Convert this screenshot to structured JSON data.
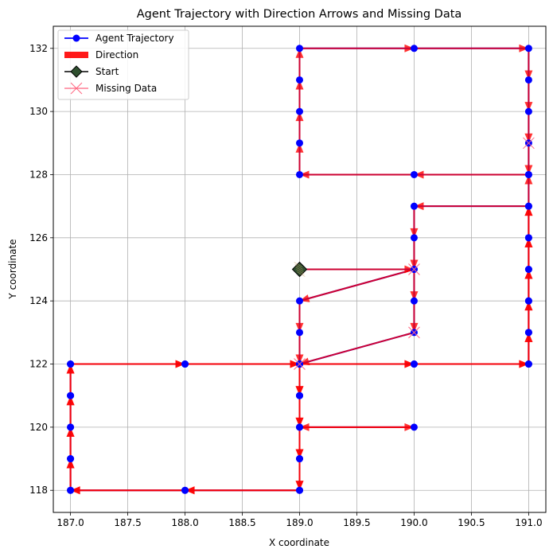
{
  "chart_data": {
    "type": "line",
    "title": "Agent Trajectory with Direction Arrows and Missing Data",
    "xlabel": "X coordinate",
    "ylabel": "Y coordinate",
    "xlim": [
      186.85,
      191.15
    ],
    "ylim": [
      117.3,
      132.7
    ],
    "xticks": [
      187.0,
      187.5,
      188.0,
      188.5,
      189.0,
      189.5,
      190.0,
      190.5,
      191.0
    ],
    "xtick_labels": [
      "187.0",
      "187.5",
      "188.0",
      "188.5",
      "189.0",
      "189.5",
      "190.0",
      "190.5",
      "191.0"
    ],
    "yticks": [
      118,
      120,
      122,
      124,
      126,
      128,
      130,
      132
    ],
    "ytick_labels": [
      "118",
      "120",
      "122",
      "124",
      "126",
      "128",
      "130",
      "132"
    ],
    "grid": true,
    "legend_position": "top-left",
    "colors": {
      "trajectory": "#0000ff",
      "direction": "#ff0000",
      "start": "#2f4f2f",
      "missing": "#ff6680"
    },
    "legend": [
      {
        "label": "Agent Trajectory",
        "kind": "line-marker"
      },
      {
        "label": "Direction",
        "kind": "patch"
      },
      {
        "label": "Start",
        "kind": "diamond"
      },
      {
        "label": "Missing Data",
        "kind": "x-marker"
      }
    ],
    "start": {
      "x": 189,
      "y": 125
    },
    "trajectory": [
      [
        189,
        125
      ],
      [
        190,
        125
      ],
      [
        190,
        124
      ],
      [
        190,
        123
      ],
      [
        189,
        122
      ],
      [
        189,
        121
      ],
      [
        189,
        120
      ],
      [
        190,
        120
      ],
      [
        189,
        120
      ],
      [
        189,
        119
      ],
      [
        189,
        118
      ],
      [
        188,
        118
      ],
      [
        187,
        118
      ],
      [
        187,
        119
      ],
      [
        187,
        120
      ],
      [
        187,
        121
      ],
      [
        187,
        122
      ],
      [
        188,
        122
      ],
      [
        189,
        122
      ],
      [
        190,
        122
      ],
      [
        191,
        122
      ],
      [
        191,
        123
      ],
      [
        191,
        124
      ],
      [
        191,
        125
      ],
      [
        191,
        126
      ],
      [
        191,
        127
      ],
      [
        190,
        127
      ],
      [
        190,
        126
      ],
      [
        190,
        125
      ],
      [
        189,
        124
      ],
      [
        189,
        123
      ],
      [
        189,
        122
      ],
      [
        189,
        121
      ],
      [
        189,
        120
      ],
      [
        189,
        119
      ],
      [
        189,
        118
      ],
      [
        188,
        118
      ],
      [
        187,
        118
      ],
      [
        187,
        119
      ],
      [
        187,
        120
      ],
      [
        187,
        121
      ],
      [
        187,
        122
      ],
      [
        188,
        122
      ],
      [
        189,
        122
      ],
      [
        190,
        122
      ],
      [
        191,
        122
      ],
      [
        191,
        123
      ],
      [
        191,
        124
      ],
      [
        191,
        125
      ],
      [
        191,
        126
      ],
      [
        191,
        127
      ],
      [
        191,
        128
      ],
      [
        190,
        128
      ],
      [
        189,
        128
      ],
      [
        189,
        129
      ],
      [
        189,
        130
      ],
      [
        189,
        131
      ],
      [
        189,
        132
      ],
      [
        190,
        132
      ],
      [
        191,
        132
      ],
      [
        191,
        131
      ],
      [
        191,
        130
      ],
      [
        191,
        129
      ],
      [
        191,
        128
      ]
    ],
    "missing_points": [
      [
        190,
        125
      ],
      [
        190,
        123
      ],
      [
        189,
        122
      ],
      [
        191,
        129
      ]
    ]
  }
}
